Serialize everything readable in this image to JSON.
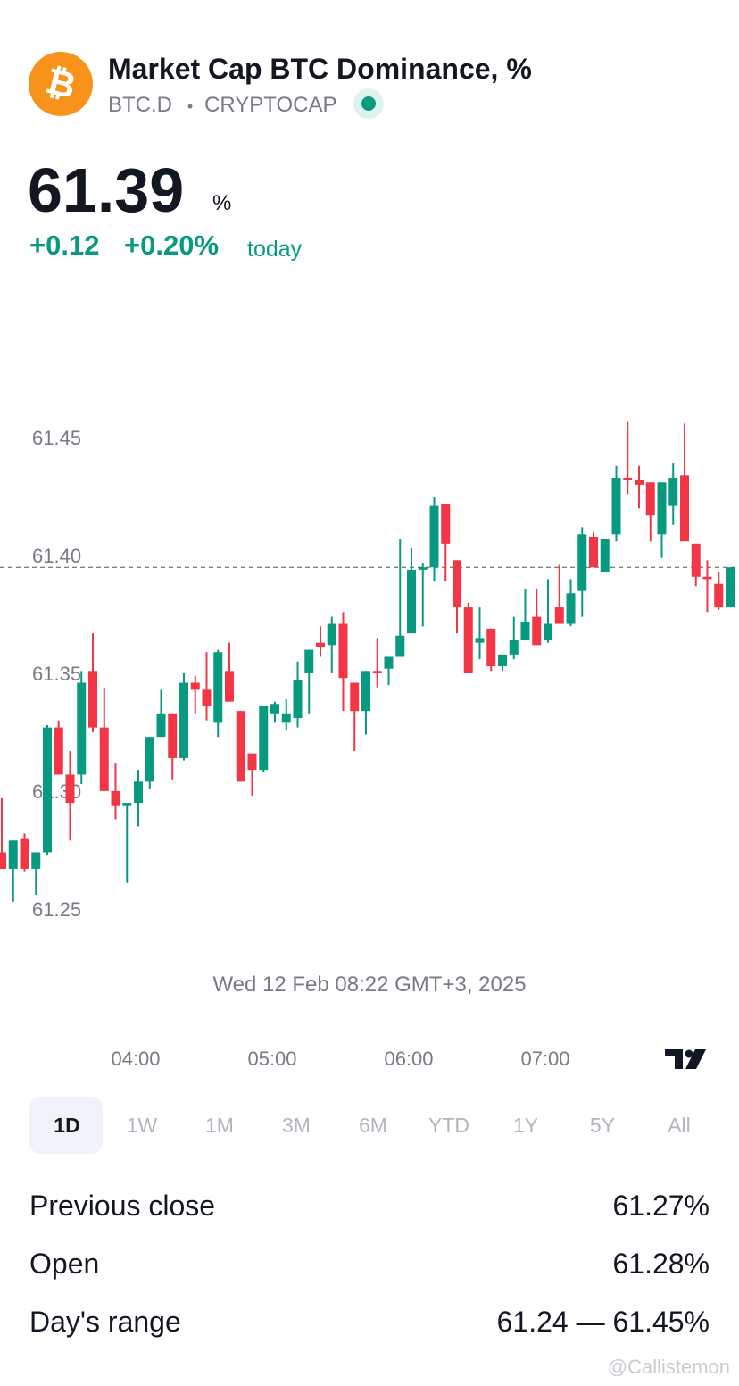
{
  "header": {
    "icon": "₿",
    "title": "Market Cap BTC Dominance, %",
    "symbol": "BTC.D",
    "separator": "•",
    "exchange": "CRYPTOCAP"
  },
  "quote": {
    "price": "61.39",
    "unit": "%",
    "change": "+0.12",
    "change_percent": "+0.20%",
    "period": "today"
  },
  "chart_data": {
    "type": "candlestick",
    "categories": [
      null,
      null,
      null,
      null,
      null,
      null,
      null,
      null,
      null,
      null,
      null,
      null,
      "04:00",
      null,
      null,
      null,
      null,
      null,
      null,
      null,
      null,
      null,
      null,
      null,
      "05:00",
      null,
      null,
      null,
      null,
      null,
      null,
      null,
      null,
      null,
      null,
      null,
      "06:00",
      null,
      null,
      null,
      null,
      null,
      null,
      null,
      null,
      null,
      null,
      null,
      "07:00",
      null,
      null,
      null,
      null,
      null,
      null,
      null,
      null,
      null,
      null,
      null,
      null,
      null,
      null,
      null,
      null
    ],
    "open": [
      61.274,
      61.267,
      61.28,
      61.267,
      61.274,
      61.327,
      61.307,
      61.307,
      61.351,
      61.327,
      61.3,
      61.294,
      61.295,
      61.304,
      61.323,
      61.333,
      61.314,
      61.346,
      61.343,
      61.329,
      61.351,
      61.334,
      61.316,
      61.309,
      61.333,
      61.329,
      61.331,
      61.35,
      61.363,
      61.362,
      61.371,
      61.346,
      61.334,
      61.351,
      61.352,
      61.357,
      61.367,
      61.394,
      61.395,
      61.422,
      61.398,
      61.378,
      61.363,
      61.369,
      61.353,
      61.358,
      61.364,
      61.374,
      61.364,
      61.378,
      61.371,
      61.385,
      61.408,
      61.393,
      61.409,
      61.433,
      61.432,
      61.431,
      61.409,
      61.421,
      61.434,
      61.405,
      61.391,
      61.388,
      61.378
    ],
    "high": [
      61.297,
      61.279,
      61.282,
      61.274,
      61.328,
      61.33,
      61.317,
      61.351,
      61.367,
      61.344,
      61.312,
      61.295,
      61.309,
      61.323,
      61.343,
      61.333,
      61.35,
      61.349,
      61.359,
      61.36,
      61.363,
      61.334,
      61.316,
      61.336,
      61.338,
      61.339,
      61.355,
      61.36,
      61.37,
      61.374,
      61.376,
      61.346,
      61.351,
      61.365,
      61.357,
      61.407,
      61.403,
      61.397,
      61.425,
      61.422,
      61.398,
      61.38,
      61.378,
      61.369,
      61.358,
      61.374,
      61.386,
      61.386,
      61.39,
      61.396,
      61.39,
      61.412,
      61.41,
      61.407,
      61.438,
      61.457,
      61.438,
      61.431,
      61.431,
      61.439,
      61.456,
      61.405,
      61.398,
      61.393,
      61.395
    ],
    "low": [
      61.267,
      61.253,
      61.266,
      61.256,
      61.273,
      61.307,
      61.279,
      61.303,
      61.325,
      61.3,
      61.288,
      61.261,
      61.285,
      61.301,
      61.323,
      61.305,
      61.313,
      61.333,
      61.33,
      61.323,
      61.338,
      61.304,
      61.298,
      61.308,
      61.329,
      61.326,
      61.327,
      61.333,
      61.357,
      61.35,
      61.334,
      61.317,
      61.324,
      61.344,
      61.345,
      61.357,
      61.367,
      61.37,
      61.389,
      61.389,
      61.367,
      61.35,
      61.356,
      61.351,
      61.351,
      61.356,
      61.364,
      61.362,
      61.363,
      61.371,
      61.37,
      61.374,
      61.395,
      61.393,
      61.406,
      61.426,
      61.42,
      61.406,
      61.399,
      61.413,
      61.406,
      61.387,
      61.376,
      61.377,
      61.378
    ],
    "close": [
      61.267,
      61.279,
      61.267,
      61.274,
      61.327,
      61.307,
      61.295,
      61.346,
      61.327,
      61.3,
      61.294,
      61.295,
      61.304,
      61.323,
      61.333,
      61.314,
      61.346,
      61.343,
      61.336,
      61.359,
      61.338,
      61.304,
      61.309,
      61.336,
      61.337,
      61.333,
      61.347,
      61.36,
      61.361,
      61.371,
      61.348,
      61.334,
      61.351,
      61.35,
      61.357,
      61.366,
      61.394,
      61.395,
      61.421,
      61.405,
      61.378,
      61.35,
      61.365,
      61.353,
      61.358,
      61.364,
      61.372,
      61.362,
      61.371,
      61.371,
      61.384,
      61.409,
      61.395,
      61.407,
      61.433,
      61.432,
      61.43,
      61.417,
      61.431,
      61.433,
      61.406,
      61.391,
      61.39,
      61.378,
      61.395
    ],
    "up_color": "#089981",
    "down_color": "#f23645",
    "ylim": [
      61.234,
      61.469
    ],
    "yticks": [
      61.25,
      {
        "value": 61.3,
        "label": "61.30"
      },
      61.35,
      {
        "value": 61.4,
        "label": "61.40"
      },
      61.45
    ],
    "price_line": 61.395,
    "date_label": "Wed 12 Feb 08:22 GMT+3, 2025"
  },
  "ranges": [
    "1D",
    "1W",
    "1M",
    "3M",
    "6M",
    "YTD",
    "1Y",
    "5Y",
    "All"
  ],
  "selected_range": 0,
  "stats": [
    {
      "label": "Previous close",
      "value": "61.27%"
    },
    {
      "label": "Open",
      "value": "61.28%"
    },
    {
      "label": "Day's range",
      "value": "61.24 — 61.45%"
    }
  ],
  "watermark": "@Callistemon"
}
